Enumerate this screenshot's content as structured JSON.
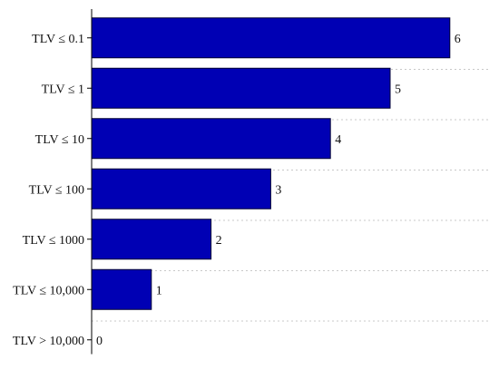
{
  "chart_data": {
    "type": "bar",
    "orientation": "horizontal",
    "categories": [
      "TLV ≤ 0.1",
      "TLV ≤ 1",
      "TLV ≤ 10",
      "TLV ≤ 100",
      "TLV ≤ 1000",
      "TLV ≤ 10,000",
      "TLV > 10,000"
    ],
    "values": [
      6,
      5,
      4,
      3,
      2,
      1,
      0
    ],
    "data_labels": [
      "6",
      "5",
      "4",
      "3",
      "2",
      "1",
      "0"
    ],
    "title": "",
    "xlabel": "",
    "ylabel": "",
    "xlim": [
      0,
      6.6
    ],
    "grid": true,
    "bar_color": "#0000b4",
    "bar_outline_color": "#000033"
  }
}
